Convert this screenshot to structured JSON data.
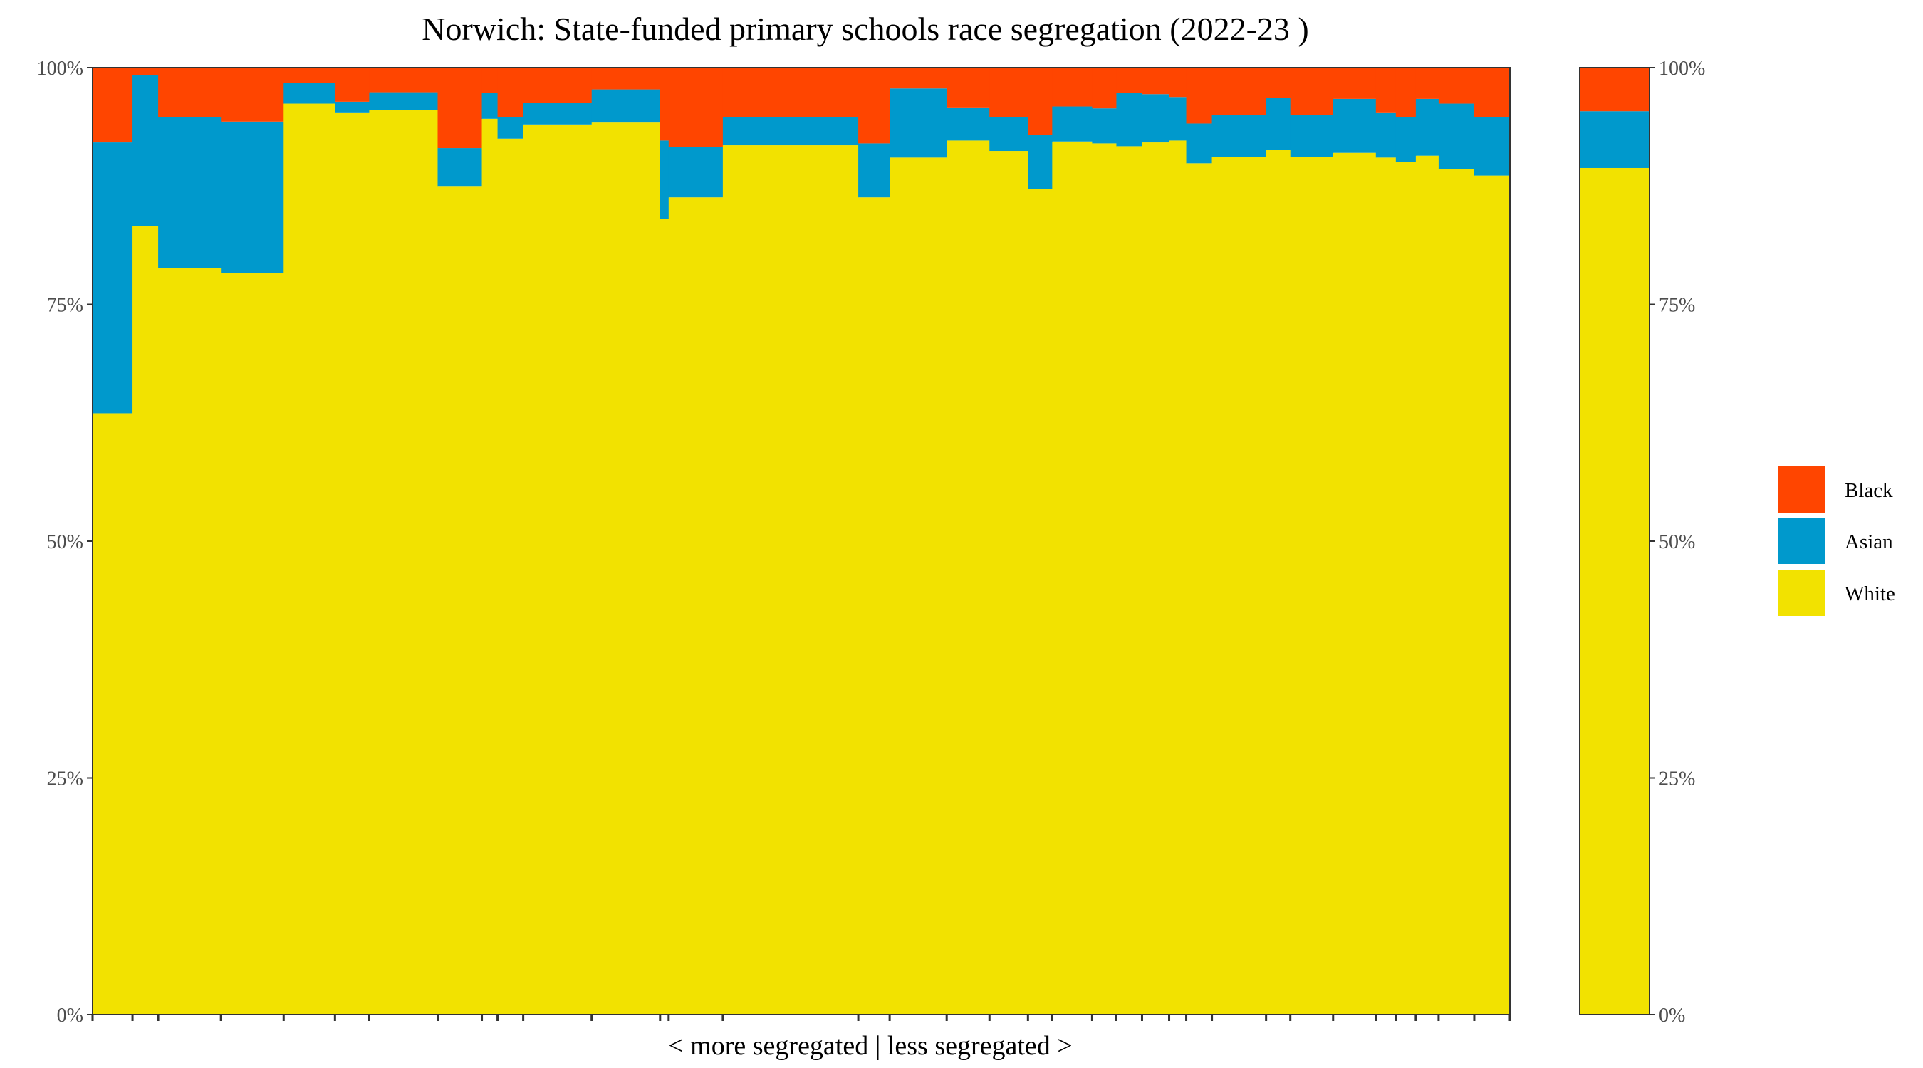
{
  "chart_data": {
    "type": "bar",
    "subtype": "stacked-100-variable-width",
    "title": "Norwich: State-funded primary schools race segregation (2022-23 )",
    "xlabel": "< more segregated | less segregated >",
    "ylabel": "",
    "ylim": [
      0,
      1
    ],
    "yticks": [
      "0%",
      "25%",
      "50%",
      "75%",
      "100%"
    ],
    "y_axis_both_sides": true,
    "grid": false,
    "legend_position": "right",
    "colors": {
      "Black": "#FF4500",
      "Asian": "#0099CC",
      "White": "#F2E200"
    },
    "series_order": [
      "White",
      "Asian",
      "Black"
    ],
    "legend": [
      {
        "name": "Black",
        "color": "#FF4500"
      },
      {
        "name": "Asian",
        "color": "#0099CC"
      },
      {
        "name": "White",
        "color": "#F2E200"
      }
    ],
    "schools": [
      {
        "share": 0.028,
        "White": 0.635,
        "Asian": 0.286,
        "Black": 0.079
      },
      {
        "share": 0.018,
        "White": 0.833,
        "Asian": 0.159,
        "Black": 0.008
      },
      {
        "share": 0.044,
        "White": 0.788,
        "Asian": 0.16,
        "Black": 0.052
      },
      {
        "share": 0.044,
        "White": 0.783,
        "Asian": 0.16,
        "Black": 0.057
      },
      {
        "share": 0.036,
        "White": 0.962,
        "Asian": 0.022,
        "Black": 0.016
      },
      {
        "share": 0.024,
        "White": 0.952,
        "Asian": 0.012,
        "Black": 0.036
      },
      {
        "share": 0.048,
        "White": 0.955,
        "Asian": 0.019,
        "Black": 0.026
      },
      {
        "share": 0.031,
        "White": 0.875,
        "Asian": 0.04,
        "Black": 0.085
      },
      {
        "share": 0.011,
        "White": 0.946,
        "Asian": 0.027,
        "Black": 0.027
      },
      {
        "share": 0.018,
        "White": 0.925,
        "Asian": 0.023,
        "Black": 0.052
      },
      {
        "share": 0.048,
        "White": 0.94,
        "Asian": 0.023,
        "Black": 0.037
      },
      {
        "share": 0.048,
        "White": 0.942,
        "Asian": 0.035,
        "Black": 0.023
      },
      {
        "share": 0.006,
        "White": 0.84,
        "Asian": 0.083,
        "Black": 0.077
      },
      {
        "share": 0.038,
        "White": 0.863,
        "Asian": 0.053,
        "Black": 0.084
      },
      {
        "share": 0.095,
        "White": 0.918,
        "Asian": 0.03,
        "Black": 0.052
      },
      {
        "share": 0.022,
        "White": 0.863,
        "Asian": 0.057,
        "Black": 0.08
      },
      {
        "share": 0.04,
        "White": 0.905,
        "Asian": 0.073,
        "Black": 0.022
      },
      {
        "share": 0.03,
        "White": 0.923,
        "Asian": 0.035,
        "Black": 0.042
      },
      {
        "share": 0.027,
        "White": 0.912,
        "Asian": 0.036,
        "Black": 0.052
      },
      {
        "share": 0.017,
        "White": 0.872,
        "Asian": 0.057,
        "Black": 0.071
      },
      {
        "share": 0.028,
        "White": 0.922,
        "Asian": 0.037,
        "Black": 0.041
      },
      {
        "share": 0.017,
        "White": 0.92,
        "Asian": 0.037,
        "Black": 0.043
      },
      {
        "share": 0.018,
        "White": 0.917,
        "Asian": 0.056,
        "Black": 0.027
      },
      {
        "share": 0.019,
        "White": 0.921,
        "Asian": 0.051,
        "Black": 0.028
      },
      {
        "share": 0.012,
        "White": 0.923,
        "Asian": 0.046,
        "Black": 0.031
      },
      {
        "share": 0.018,
        "White": 0.899,
        "Asian": 0.042,
        "Black": 0.059
      },
      {
        "share": 0.038,
        "White": 0.906,
        "Asian": 0.044,
        "Black": 0.05
      },
      {
        "share": 0.017,
        "White": 0.913,
        "Asian": 0.055,
        "Black": 0.032
      },
      {
        "share": 0.03,
        "White": 0.906,
        "Asian": 0.044,
        "Black": 0.05
      },
      {
        "share": 0.03,
        "White": 0.91,
        "Asian": 0.057,
        "Black": 0.033
      },
      {
        "share": 0.014,
        "White": 0.905,
        "Asian": 0.047,
        "Black": 0.048
      },
      {
        "share": 0.014,
        "White": 0.9,
        "Asian": 0.048,
        "Black": 0.052
      },
      {
        "share": 0.016,
        "White": 0.907,
        "Asian": 0.06,
        "Black": 0.033
      },
      {
        "share": 0.025,
        "White": 0.893,
        "Asian": 0.069,
        "Black": 0.038
      },
      {
        "share": 0.025,
        "White": 0.886,
        "Asian": 0.062,
        "Black": 0.052
      }
    ],
    "overall": {
      "White": 0.894,
      "Asian": 0.06,
      "Black": 0.046
    }
  }
}
